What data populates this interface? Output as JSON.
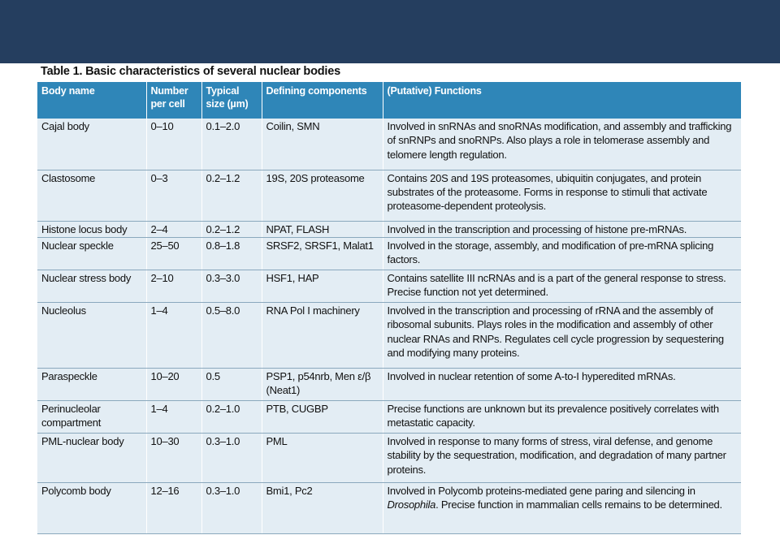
{
  "table": {
    "title": "Table 1. Basic characteristics of several nuclear bodies",
    "headers": [
      "Body name",
      "Number per cell",
      "Typical size (µm)",
      "Defining components",
      "(Putative) Functions"
    ],
    "rows": [
      {
        "name": "Cajal body",
        "number": "0–10",
        "size": "0.1–2.0",
        "components": "Coilin, SMN",
        "functions": "Involved in snRNAs and snoRNAs modification, and assembly and trafficking of snRNPs and snoRNPs. Also plays a role in telomerase assembly and telomere length regulation.",
        "func_italic": "",
        "func_tail": ""
      },
      {
        "name": "Clastosome",
        "number": "0–3",
        "size": "0.2–1.2",
        "components": "19S, 20S proteasome",
        "functions": "Contains 20S and 19S proteasomes, ubiquitin conjugates, and protein substrates of the proteasome. Forms in response to stimuli that activate proteasome-dependent proteolysis.",
        "func_italic": "",
        "func_tail": ""
      },
      {
        "name": "Histone locus body",
        "number": "2–4",
        "size": "0.2–1.2",
        "components": "NPAT, FLASH",
        "functions": "Involved in the transcription and processing of histone pre-mRNAs.",
        "func_italic": "",
        "func_tail": ""
      },
      {
        "name": "Nuclear speckle",
        "number": "25–50",
        "size": "0.8–1.8",
        "components": "SRSF2, SRSF1, Malat1",
        "functions": "Involved in the storage, assembly, and modification of pre-mRNA splicing factors.",
        "func_italic": "",
        "func_tail": ""
      },
      {
        "name": "Nuclear stress body",
        "number": "2–10",
        "size": "0.3–3.0",
        "components": "HSF1, HAP",
        "functions": "Contains satellite III ncRNAs and is a part of the general response to stress. Precise function not yet determined.",
        "func_italic": "",
        "func_tail": ""
      },
      {
        "name": "Nucleolus",
        "number": "1–4",
        "size": "0.5–8.0",
        "components": "RNA Pol I machinery",
        "functions": "Involved in the transcription and processing of rRNA and the assembly of ribosomal subunits. Plays roles in the modification and assembly of other nuclear RNAs and RNPs. Regulates cell cycle progression by sequestering and modifying many proteins.",
        "func_italic": "",
        "func_tail": ""
      },
      {
        "name": "Paraspeckle",
        "number": "10–20",
        "size": "0.5",
        "components": "PSP1, p54nrb, Men ε/β (Neat1)",
        "functions": "Involved in nuclear retention of some A-to-I hyperedited mRNAs.",
        "func_italic": "",
        "func_tail": ""
      },
      {
        "name": "Perinucleolar compartment",
        "number": "1–4",
        "size": "0.2–1.0",
        "components": "PTB, CUGBP",
        "functions": "Precise functions are unknown but its prevalence positively correlates with metastatic capacity.",
        "func_italic": "",
        "func_tail": ""
      },
      {
        "name": "PML-nuclear body",
        "number": "10–30",
        "size": "0.3–1.0",
        "components": "PML",
        "functions": "Involved in response to many forms of stress, viral defense, and genome stability by the sequestration, modification, and degradation of many partner proteins.",
        "func_italic": "",
        "func_tail": ""
      },
      {
        "name": "Polycomb body",
        "number": "12–16",
        "size": "0.3–1.0",
        "components": "Bmi1, Pc2",
        "functions": "Involved in Polycomb proteins-mediated gene paring and silencing in ",
        "func_italic": "Drosophila",
        "func_tail": ". Precise function in mammalian cells remains to be determined."
      }
    ]
  }
}
